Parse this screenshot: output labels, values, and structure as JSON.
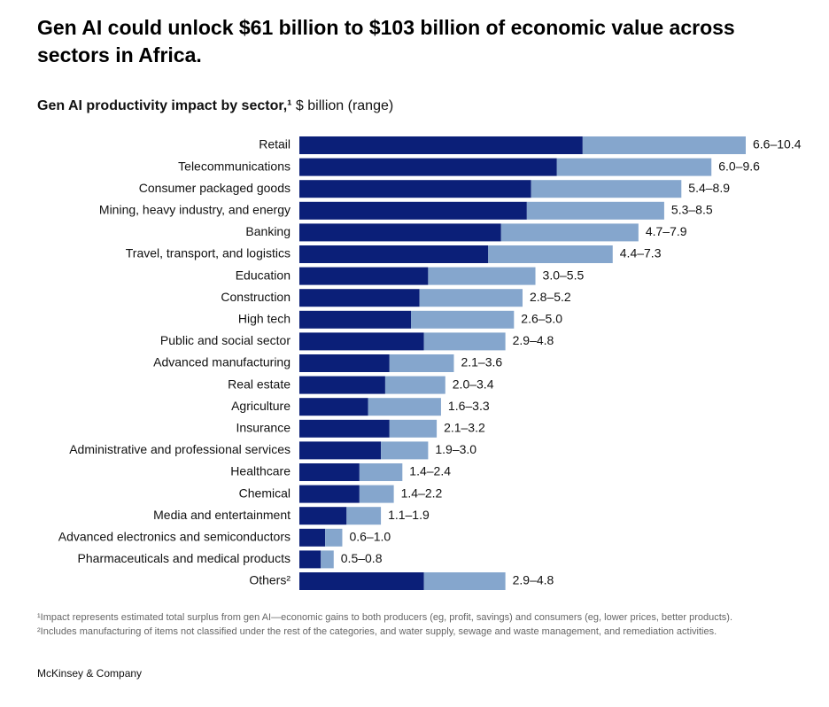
{
  "chart_data": {
    "type": "range_bar",
    "title": "Gen AI could unlock $61 billion to $103 billion of economic value across sectors in Africa.",
    "subtitle": "Gen AI productivity impact by sector,¹",
    "unit": "$ billion (range)",
    "categories": [
      "Retail",
      "Telecommunications",
      "Consumer packaged goods",
      "Mining, heavy industry, and energy",
      "Banking",
      "Travel, transport, and logistics",
      "Education",
      "Construction",
      "High tech",
      "Public and social sector",
      "Advanced manufacturing",
      "Real estate",
      "Agriculture",
      "Insurance",
      "Administrative and professional services",
      "Healthcare",
      "Chemical",
      "Media and entertainment",
      "Advanced electronics and semiconductors",
      "Pharmaceuticals and medical products",
      "Others²"
    ],
    "series": [
      {
        "color": "#0b1f78",
        "values": [
          6.6,
          6.0,
          5.4,
          5.3,
          4.7,
          4.4,
          3.0,
          2.8,
          2.6,
          2.9,
          2.1,
          2.0,
          1.6,
          2.1,
          1.9,
          1.4,
          1.4,
          1.1,
          0.6,
          0.5,
          2.9
        ]
      },
      {
        "color": "#85a6cd",
        "values": [
          10.4,
          9.6,
          8.9,
          8.5,
          7.9,
          7.3,
          5.5,
          5.2,
          5.0,
          4.8,
          3.6,
          3.4,
          3.3,
          3.2,
          3.0,
          2.4,
          2.2,
          1.9,
          1.0,
          0.8,
          4.8
        ]
      }
    ],
    "value_labels": [
      "6.6–10.4",
      "6.0–9.6",
      "5.4–8.9",
      "5.3–8.5",
      "4.7–7.9",
      "4.4–7.3",
      "3.0–5.5",
      "2.8–5.2",
      "2.6–5.0",
      "2.9–4.8",
      "2.1–3.6",
      "2.0–3.4",
      "1.6–3.3",
      "2.1–3.2",
      "1.9–3.0",
      "1.4–2.4",
      "1.4–2.2",
      "1.1–1.9",
      "0.6–1.0",
      "0.5–0.8",
      "2.9–4.8"
    ],
    "footnotes": [
      "¹Impact represents estimated total surplus from gen AI—economic gains to both producers (eg, profit, savings) and consumers (eg, lower prices, better products).",
      "²Includes manufacturing of items not classified under the rest of the categories, and water supply, sewage and waste management, and remediation activities."
    ],
    "source": "McKinsey & Company"
  }
}
